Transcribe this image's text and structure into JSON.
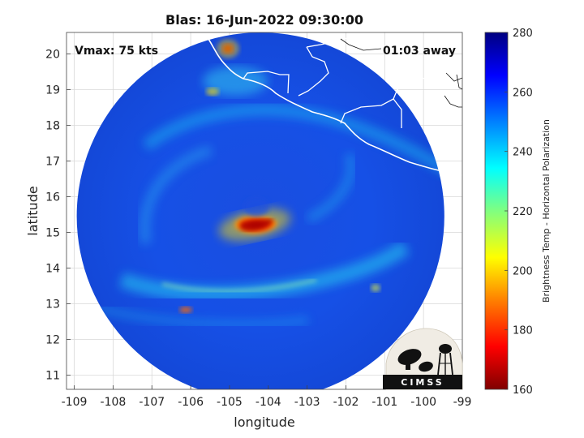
{
  "title": "Blas: 16-Jun-2022 09:30:00",
  "annotations": {
    "vmax": "Vmax: 75 kts",
    "time_away": "01:03 away"
  },
  "axes": {
    "xlabel": "longitude",
    "ylabel": "latitude",
    "xlim": [
      -109.2,
      -99
    ],
    "ylim": [
      10.6,
      20.6
    ],
    "xticks": [
      -109,
      -108,
      -107,
      -106,
      -105,
      -104,
      -103,
      -102,
      -101,
      -100,
      -99
    ],
    "yticks": [
      11,
      12,
      13,
      14,
      15,
      16,
      17,
      18,
      19,
      20
    ],
    "grid": true
  },
  "colorbar": {
    "label": "Brightness Temp - Horizontal Polarization",
    "range": [
      160,
      280
    ],
    "ticks": [
      160,
      180,
      200,
      220,
      240,
      260,
      280
    ],
    "colors": [
      "#800000",
      "#ff0000",
      "#ff8000",
      "#ffff00",
      "#80ff80",
      "#00ffff",
      "#0080ff",
      "#0000ff",
      "#000080"
    ]
  },
  "swath": {
    "center_lon": -104.2,
    "center_lat": 15.45,
    "radius_deg_lat": 5.15
  },
  "storm": {
    "name": "Blas",
    "center_lon": -104.35,
    "center_lat": 15.2,
    "min_temp_region": "red band near center"
  },
  "logo": {
    "text": "CIMSS"
  }
}
